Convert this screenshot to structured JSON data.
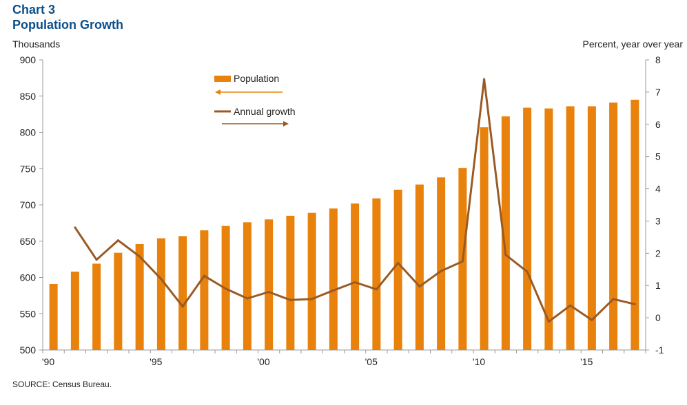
{
  "header": {
    "chart_number": "Chart 3",
    "title": "Population Growth"
  },
  "footer": {
    "source": "SOURCE: Census Bureau."
  },
  "colors": {
    "population": "#e8820c",
    "growth": "#9b5a24",
    "title": "#0b4f8a"
  },
  "chart_data": {
    "type": "bar",
    "title": "Population Growth",
    "y_left": {
      "label": "Thousands",
      "ylim": [
        500,
        900
      ],
      "ticks": [
        500,
        550,
        600,
        650,
        700,
        750,
        800,
        850,
        900
      ]
    },
    "y_right": {
      "label": "Percent, year over year",
      "ylim": [
        -1,
        8
      ],
      "ticks": [
        -1,
        0,
        1,
        2,
        3,
        4,
        5,
        6,
        7,
        8
      ]
    },
    "x": [
      1990,
      1991,
      1992,
      1993,
      1994,
      1995,
      1996,
      1997,
      1998,
      1999,
      2000,
      2001,
      2002,
      2003,
      2004,
      2005,
      2006,
      2007,
      2008,
      2009,
      2010,
      2011,
      2012,
      2013,
      2014,
      2015,
      2016,
      2017
    ],
    "x_tick_labels": [
      {
        "year": 1990,
        "label": "'90"
      },
      {
        "year": 1995,
        "label": "'95"
      },
      {
        "year": 2000,
        "label": "'00"
      },
      {
        "year": 2005,
        "label": "'05"
      },
      {
        "year": 2010,
        "label": "'10"
      },
      {
        "year": 2015,
        "label": "'15"
      }
    ],
    "series": [
      {
        "name": "Population",
        "type": "bar",
        "axis": "left",
        "values": [
          591,
          608,
          619,
          634,
          646,
          654,
          657,
          665,
          671,
          676,
          680,
          685,
          689,
          695,
          702,
          709,
          721,
          728,
          738,
          751,
          807,
          822,
          834,
          833,
          836,
          836,
          841,
          845
        ]
      },
      {
        "name": "Annual growth",
        "type": "line",
        "axis": "right",
        "values": [
          null,
          2.8,
          1.8,
          2.4,
          1.9,
          1.2,
          0.35,
          1.3,
          0.9,
          0.6,
          0.8,
          0.55,
          0.58,
          0.85,
          1.1,
          0.88,
          1.7,
          0.97,
          1.45,
          1.75,
          7.4,
          1.95,
          1.43,
          -0.12,
          0.38,
          -0.07,
          0.58,
          0.42
        ]
      }
    ],
    "legend": [
      {
        "label": "Population",
        "arrow": "left"
      },
      {
        "label": "Annual growth",
        "arrow": "right"
      }
    ],
    "grid": false
  }
}
